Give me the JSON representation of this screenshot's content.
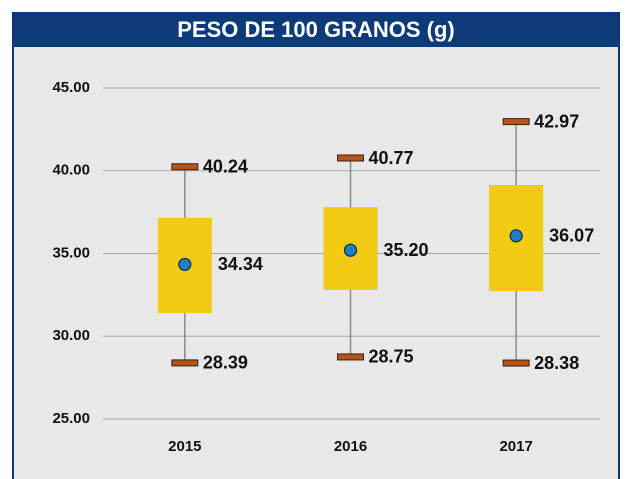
{
  "chart_data": {
    "type": "box",
    "title": "PESO DE 100 GRANOS (g)",
    "categories": [
      "2015",
      "2016",
      "2017"
    ],
    "whisker_high": [
      40.24,
      40.77,
      42.97
    ],
    "whisker_high_labels": [
      "40.24",
      "40.77",
      "42.97"
    ],
    "box_high": [
      37.15,
      37.8,
      39.14
    ],
    "mean": [
      34.34,
      35.2,
      36.07
    ],
    "mean_labels": [
      "34.34",
      "35.20",
      "36.07"
    ],
    "box_low": [
      31.4,
      32.8,
      32.73
    ],
    "whisker_low": [
      28.39,
      28.75,
      28.38
    ],
    "whisker_low_labels": [
      "28.39",
      "28.75",
      "28.38"
    ],
    "box_color": "#f2cb14",
    "cap_color": "#b5541b",
    "mean_color": "#1f7fc0",
    "ylim": [
      25,
      45
    ],
    "yticks": [
      {
        "value": 25,
        "label": "25.00"
      },
      {
        "value": 30,
        "label": "30.00"
      },
      {
        "value": 35,
        "label": "35.00"
      },
      {
        "value": 40,
        "label": "40.00"
      },
      {
        "value": 45,
        "label": "45.00"
      }
    ],
    "grid": true
  }
}
